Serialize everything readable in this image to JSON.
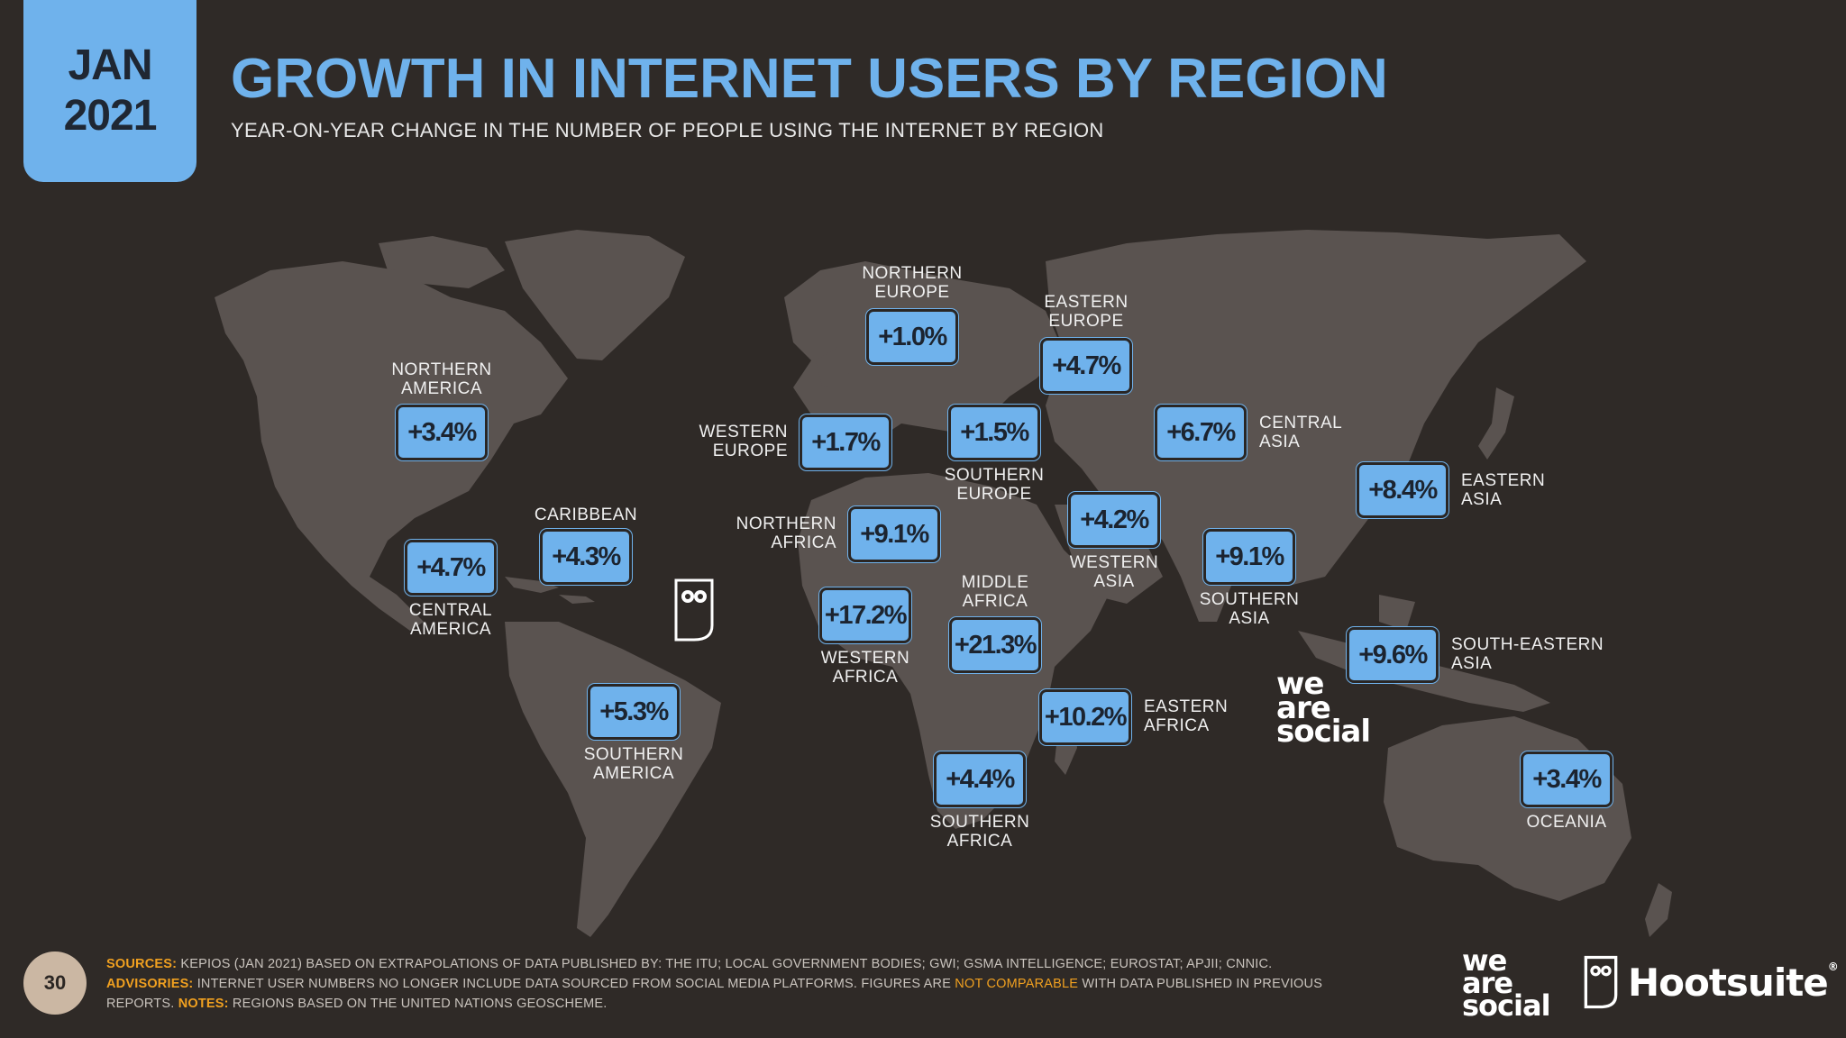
{
  "header": {
    "date_month": "JAN",
    "date_year": "2021",
    "title": "GROWTH IN INTERNET USERS BY REGION",
    "subtitle": "YEAR-ON-YEAR CHANGE IN THE NUMBER OF PEOPLE USING THE INTERNET BY REGION"
  },
  "regions": [
    {
      "id": "northern-america",
      "label": [
        "NORTHERN",
        "AMERICA"
      ],
      "value": "+3.4%"
    },
    {
      "id": "central-america",
      "label": [
        "CENTRAL",
        "AMERICA"
      ],
      "value": "+4.7%"
    },
    {
      "id": "caribbean",
      "label": [
        "CARIBBEAN"
      ],
      "value": "+4.3%"
    },
    {
      "id": "southern-america",
      "label": [
        "SOUTHERN",
        "AMERICA"
      ],
      "value": "+5.3%"
    },
    {
      "id": "northern-europe",
      "label": [
        "NORTHERN",
        "EUROPE"
      ],
      "value": "+1.0%"
    },
    {
      "id": "western-europe",
      "label": [
        "WESTERN",
        "EUROPE"
      ],
      "value": "+1.7%"
    },
    {
      "id": "southern-europe",
      "label": [
        "SOUTHERN",
        "EUROPE"
      ],
      "value": "+1.5%"
    },
    {
      "id": "eastern-europe",
      "label": [
        "EASTERN",
        "EUROPE"
      ],
      "value": "+4.7%"
    },
    {
      "id": "northern-africa",
      "label": [
        "NORTHERN",
        "AFRICA"
      ],
      "value": "+9.1%"
    },
    {
      "id": "western-africa",
      "label": [
        "WESTERN",
        "AFRICA"
      ],
      "value": "+17.2%"
    },
    {
      "id": "middle-africa",
      "label": [
        "MIDDLE",
        "AFRICA"
      ],
      "value": "+21.3%"
    },
    {
      "id": "eastern-africa",
      "label": [
        "EASTERN",
        "AFRICA"
      ],
      "value": "+10.2%"
    },
    {
      "id": "southern-africa",
      "label": [
        "SOUTHERN",
        "AFRICA"
      ],
      "value": "+4.4%"
    },
    {
      "id": "western-asia",
      "label": [
        "WESTERN",
        "ASIA"
      ],
      "value": "+4.2%"
    },
    {
      "id": "central-asia",
      "label": [
        "CENTRAL",
        "ASIA"
      ],
      "value": "+6.7%"
    },
    {
      "id": "southern-asia",
      "label": [
        "SOUTHERN",
        "ASIA"
      ],
      "value": "+9.1%"
    },
    {
      "id": "eastern-asia",
      "label": [
        "EASTERN",
        "ASIA"
      ],
      "value": "+8.4%"
    },
    {
      "id": "south-eastern-asia",
      "label": [
        "SOUTH-EASTERN",
        "ASIA"
      ],
      "value": "+9.6%"
    },
    {
      "id": "oceania",
      "label": [
        "OCEANIA"
      ],
      "value": "+3.4%"
    }
  ],
  "logos": {
    "we_are_social": [
      "we",
      "are",
      "social"
    ],
    "hootsuite": "Hootsuite",
    "hootsuite_mark": "®"
  },
  "footer": {
    "page_number": "30",
    "sources_key": "SOURCES:",
    "sources_text": "KEPIOS (JAN 2021) BASED ON EXTRAPOLATIONS OF DATA PUBLISHED BY: THE ITU; LOCAL GOVERNMENT BODIES; GWI; GSMA INTELLIGENCE; EUROSTAT; APJII; CNNIC.",
    "advisories_key": "ADVISORIES:",
    "advisories_text_1": "INTERNET USER NUMBERS NO LONGER INCLUDE DATA SOURCED FROM SOCIAL MEDIA PLATFORMS. FIGURES ARE",
    "advisories_highlight": "NOT COMPARABLE",
    "advisories_text_2": "WITH DATA PUBLISHED IN PREVIOUS REPORTS.",
    "notes_key": "NOTES:",
    "notes_text": "REGIONS BASED ON THE UNITED NATIONS GEOSCHEME."
  },
  "colors": {
    "background": "#2f2a27",
    "land": "#5a5350",
    "accent": "#6fb2ec",
    "highlight": "#f0a020"
  }
}
